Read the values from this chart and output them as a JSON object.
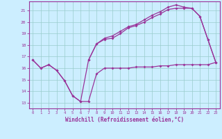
{
  "xlabel": "Windchill (Refroidissement éolien,°C)",
  "background_color": "#cceeff",
  "grid_color": "#99cccc",
  "line_color": "#993399",
  "spine_color": "#993399",
  "xlim": [
    -0.5,
    23.5
  ],
  "ylim": [
    12.5,
    21.8
  ],
  "xticks": [
    0,
    1,
    2,
    3,
    4,
    5,
    6,
    7,
    8,
    9,
    10,
    11,
    12,
    13,
    14,
    15,
    16,
    17,
    18,
    19,
    20,
    21,
    22,
    23
  ],
  "yticks": [
    13,
    14,
    15,
    16,
    17,
    18,
    19,
    20,
    21
  ],
  "series1_x": [
    0,
    1,
    2,
    3,
    4,
    5,
    6,
    7,
    8,
    9,
    10,
    11,
    12,
    13,
    14,
    15,
    16,
    17,
    18,
    19,
    20,
    21,
    22,
    23
  ],
  "series1_y": [
    16.7,
    16.0,
    16.3,
    15.8,
    14.9,
    13.6,
    13.1,
    13.1,
    15.5,
    16.0,
    16.0,
    16.0,
    16.0,
    16.1,
    16.1,
    16.1,
    16.2,
    16.2,
    16.3,
    16.3,
    16.3,
    16.3,
    16.3,
    16.5
  ],
  "series2_x": [
    0,
    1,
    2,
    3,
    4,
    5,
    6,
    7,
    8,
    9,
    10,
    11,
    12,
    13,
    14,
    15,
    16,
    17,
    18,
    19,
    20,
    21,
    22,
    23
  ],
  "series2_y": [
    16.7,
    16.0,
    16.3,
    15.8,
    14.9,
    13.6,
    13.1,
    16.7,
    18.1,
    18.5,
    18.6,
    19.0,
    19.5,
    19.7,
    20.0,
    20.4,
    20.7,
    21.1,
    21.2,
    21.2,
    21.2,
    20.5,
    18.5,
    16.5
  ],
  "series3_x": [
    7,
    8,
    9,
    10,
    11,
    12,
    13,
    14,
    15,
    16,
    17,
    18,
    19,
    20,
    21,
    22,
    23
  ],
  "series3_y": [
    16.7,
    18.1,
    18.6,
    18.8,
    19.2,
    19.6,
    19.8,
    20.2,
    20.6,
    20.9,
    21.3,
    21.5,
    21.3,
    21.2,
    20.5,
    18.5,
    16.5
  ]
}
